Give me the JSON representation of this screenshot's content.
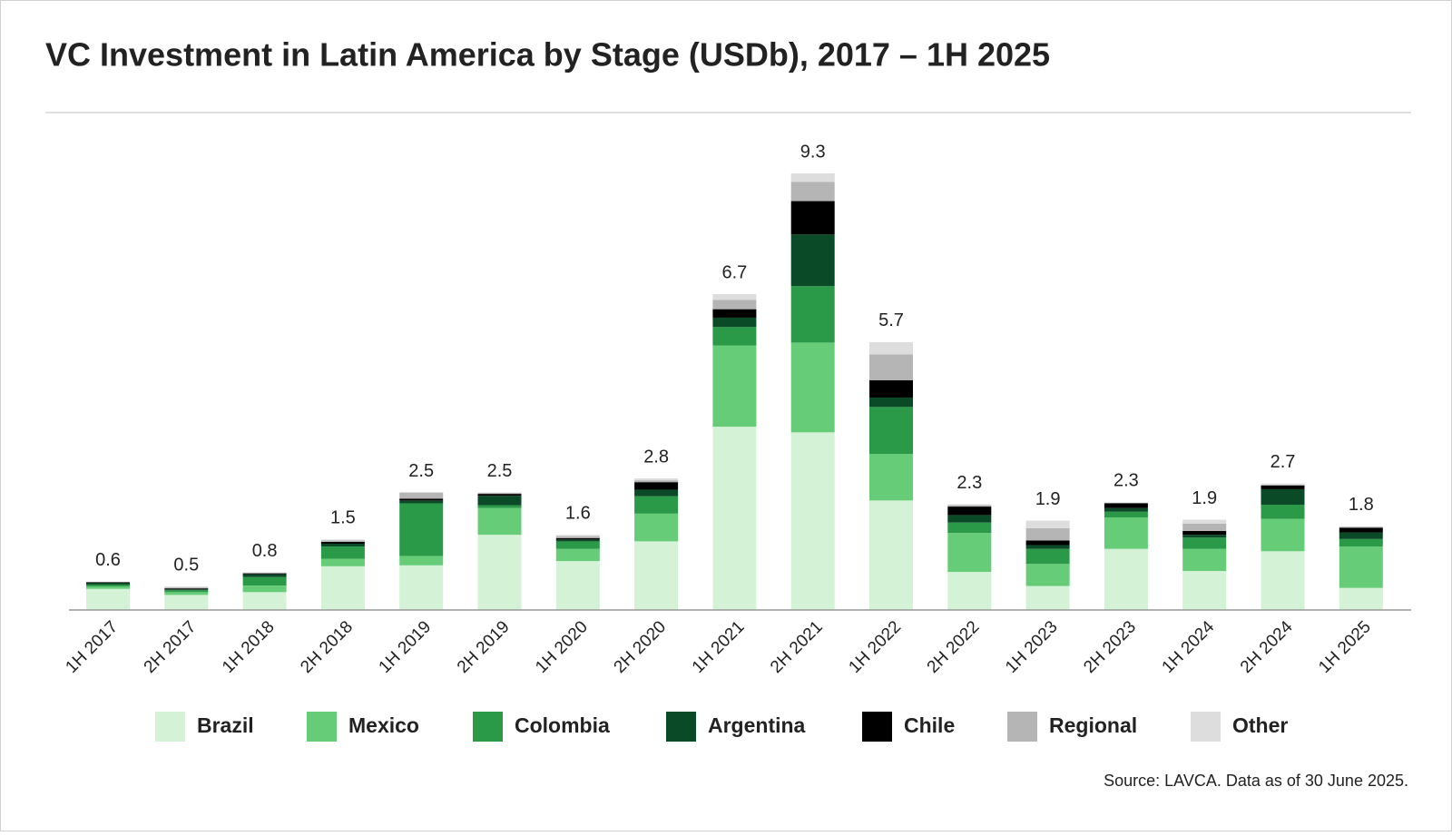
{
  "chart_data": {
    "type": "stacked_bar",
    "title": "VC Investment in Latin America by Stage (USDb), 2017 – 1H 2025",
    "source": "Source: LAVCA. Data as of 30 June 2025.",
    "categories": [
      "1H 2017",
      "2H 2017",
      "1H 2018",
      "2H 2018",
      "1H 2019",
      "2H 2019",
      "1H 2020",
      "2H 2020",
      "1H 2021",
      "2H 2021",
      "1H 2022",
      "2H 2022",
      "1H 2023",
      "2H 2023",
      "1H 2024",
      "2H 2024",
      "1H 2025"
    ],
    "totals": [
      0.6,
      0.5,
      0.8,
      1.5,
      2.5,
      2.5,
      1.6,
      2.8,
      6.7,
      9.3,
      5.7,
      2.3,
      1.9,
      2.3,
      1.9,
      2.7,
      1.8
    ],
    "series": [
      {
        "name": "Brazil",
        "color": "#d4f2d6",
        "values": [
          0.45,
          0.32,
          0.38,
          0.93,
          0.95,
          1.6,
          1.04,
          1.46,
          3.9,
          3.78,
          2.33,
          0.81,
          0.51,
          1.3,
          0.83,
          1.25,
          0.47
        ]
      },
      {
        "name": "Mexico",
        "color": "#66cc77",
        "values": [
          0.05,
          0.06,
          0.14,
          0.16,
          0.2,
          0.57,
          0.26,
          0.59,
          1.73,
          1.91,
          0.99,
          0.83,
          0.47,
          0.67,
          0.47,
          0.69,
          0.88
        ]
      },
      {
        "name": "Colombia",
        "color": "#2a9a48",
        "values": [
          0.04,
          0.04,
          0.18,
          0.26,
          1.12,
          0.06,
          0.16,
          0.37,
          0.39,
          1.2,
          1.0,
          0.22,
          0.32,
          0.12,
          0.24,
          0.3,
          0.16
        ]
      },
      {
        "name": "Argentina",
        "color": "#0b4a27",
        "values": [
          0.04,
          0.02,
          0.06,
          0.06,
          0.06,
          0.2,
          0.04,
          0.14,
          0.2,
          1.1,
          0.2,
          0.16,
          0.08,
          0.08,
          0.06,
          0.33,
          0.14
        ]
      },
      {
        "name": "Chile",
        "color": "#000000",
        "values": [
          0.01,
          0.02,
          0.02,
          0.04,
          0.04,
          0.04,
          0.03,
          0.16,
          0.18,
          0.71,
          0.37,
          0.18,
          0.1,
          0.1,
          0.08,
          0.08,
          0.1
        ]
      },
      {
        "name": "Regional",
        "color": "#b5b5b5",
        "values": [
          0.01,
          0.02,
          0.01,
          0.03,
          0.13,
          0.02,
          0.04,
          0.04,
          0.2,
          0.41,
          0.55,
          0.03,
          0.26,
          0.01,
          0.16,
          0.02,
          0.02
        ]
      },
      {
        "name": "Other",
        "color": "#dddddd",
        "values": [
          0.0,
          0.02,
          0.01,
          0.02,
          0.0,
          0.01,
          0.03,
          0.04,
          0.12,
          0.18,
          0.26,
          0.02,
          0.16,
          0.01,
          0.08,
          0.02,
          0.01
        ]
      }
    ]
  }
}
